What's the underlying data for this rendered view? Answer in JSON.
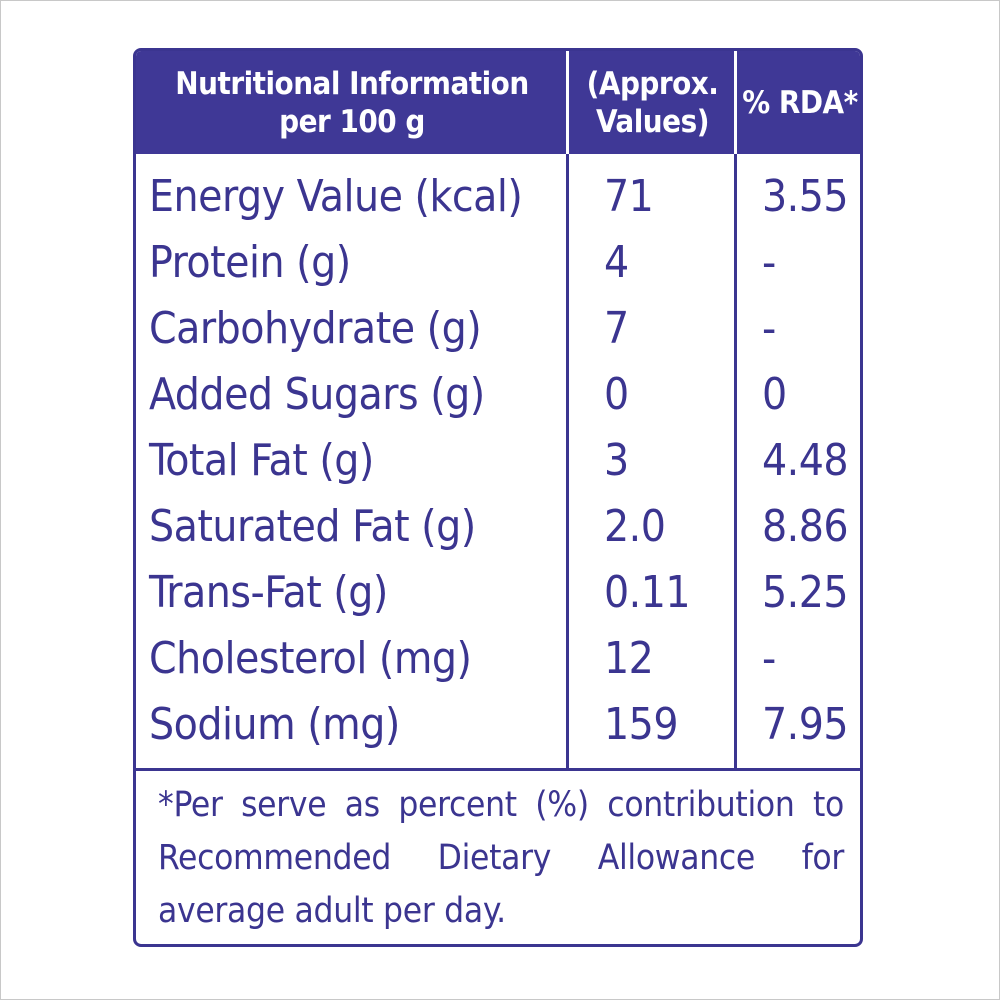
{
  "header": {
    "col1_line1": "Nutritional Information",
    "col1_line2": "per 100 g",
    "col2_line1": "(Approx.",
    "col2_line2": "Values)",
    "col3": "% RDA*"
  },
  "rows": [
    {
      "name": "Energy Value (kcal)",
      "value": "71",
      "rda": "3.55"
    },
    {
      "name": "Protein (g)",
      "value": "4",
      "rda": "-"
    },
    {
      "name": "Carbohydrate (g)",
      "value": "7",
      "rda": "-"
    },
    {
      "name": "Added Sugars (g)",
      "value": "0",
      "rda": "0"
    },
    {
      "name": "Total Fat (g)",
      "value": "3",
      "rda": "4.48"
    },
    {
      "name": "Saturated Fat (g)",
      "value": "2.0",
      "rda": "8.86"
    },
    {
      "name": "Trans-Fat (g)",
      "value": "0.11",
      "rda": "5.25"
    },
    {
      "name": "Cholesterol (mg)",
      "value": "12",
      "rda": "-"
    },
    {
      "name": "Sodium (mg)",
      "value": "159",
      "rda": "7.95"
    }
  ],
  "footnote": "*Per serve as percent (%) contribution to Recommended Dietary Allowance for average adult per day.",
  "colors": {
    "primary": "#3b3590",
    "header_bg": "#3f3896",
    "header_text": "#ffffff"
  }
}
